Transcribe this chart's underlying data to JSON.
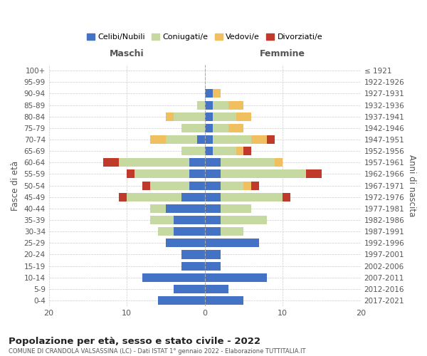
{
  "age_groups": [
    "0-4",
    "5-9",
    "10-14",
    "15-19",
    "20-24",
    "25-29",
    "30-34",
    "35-39",
    "40-44",
    "45-49",
    "50-54",
    "55-59",
    "60-64",
    "65-69",
    "70-74",
    "75-79",
    "80-84",
    "85-89",
    "90-94",
    "95-99",
    "100+"
  ],
  "birth_years": [
    "2017-2021",
    "2012-2016",
    "2007-2011",
    "2002-2006",
    "1997-2001",
    "1992-1996",
    "1987-1991",
    "1982-1986",
    "1977-1981",
    "1972-1976",
    "1967-1971",
    "1962-1966",
    "1957-1961",
    "1952-1956",
    "1947-1951",
    "1942-1946",
    "1937-1941",
    "1932-1936",
    "1927-1931",
    "1922-1926",
    "≤ 1921"
  ],
  "maschi": {
    "celibi": [
      6,
      4,
      8,
      3,
      3,
      5,
      4,
      4,
      5,
      3,
      2,
      2,
      2,
      0,
      1,
      0,
      0,
      0,
      0,
      0,
      0
    ],
    "coniugati": [
      0,
      0,
      0,
      0,
      0,
      0,
      2,
      3,
      2,
      7,
      5,
      7,
      9,
      3,
      4,
      3,
      4,
      1,
      0,
      0,
      0
    ],
    "vedovi": [
      0,
      0,
      0,
      0,
      0,
      0,
      0,
      0,
      0,
      0,
      0,
      0,
      0,
      0,
      2,
      0,
      1,
      0,
      0,
      0,
      0
    ],
    "divorziati": [
      0,
      0,
      0,
      0,
      0,
      0,
      0,
      0,
      0,
      1,
      1,
      1,
      2,
      0,
      0,
      0,
      0,
      0,
      0,
      0,
      0
    ]
  },
  "femmine": {
    "nubili": [
      5,
      3,
      8,
      2,
      2,
      7,
      2,
      2,
      2,
      2,
      2,
      2,
      2,
      1,
      1,
      1,
      1,
      1,
      1,
      0,
      0
    ],
    "coniugate": [
      0,
      0,
      0,
      0,
      0,
      0,
      3,
      6,
      4,
      8,
      3,
      11,
      7,
      3,
      5,
      2,
      3,
      2,
      0,
      0,
      0
    ],
    "vedove": [
      0,
      0,
      0,
      0,
      0,
      0,
      0,
      0,
      0,
      0,
      1,
      0,
      1,
      1,
      2,
      2,
      2,
      2,
      1,
      0,
      0
    ],
    "divorziate": [
      0,
      0,
      0,
      0,
      0,
      0,
      0,
      0,
      0,
      1,
      1,
      2,
      0,
      1,
      1,
      0,
      0,
      0,
      0,
      0,
      0
    ]
  },
  "color_celibi": "#4472c4",
  "color_coniugati": "#c5d9a0",
  "color_vedovi": "#f0c060",
  "color_divorziati": "#c0392b",
  "title": "Popolazione per età, sesso e stato civile - 2022",
  "subtitle": "COMUNE DI CRANDOLA VALSASSINA (LC) - Dati ISTAT 1° gennaio 2022 - Elaborazione TUTTITALIA.IT",
  "xlabel_left": "Maschi",
  "xlabel_right": "Femmine",
  "ylabel_left": "Fasce di età",
  "ylabel_right": "Anni di nascita",
  "xlim": 20,
  "legend_labels": [
    "Celibi/Nubili",
    "Coniugati/e",
    "Vedovi/e",
    "Divorziati/e"
  ],
  "bg_color": "#ffffff",
  "grid_color": "#cccccc"
}
